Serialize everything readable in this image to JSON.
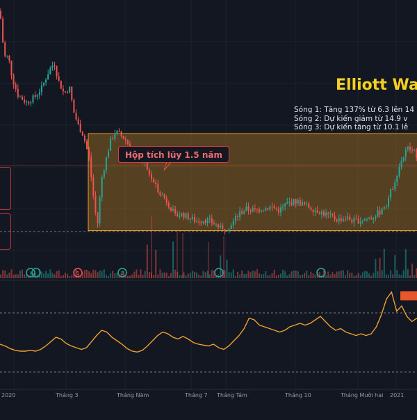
{
  "chart_data": [
    {
      "type": "candlestick",
      "title": "Elliott Wav",
      "annotations": [
        "Sóng 1: Tăng 137% từ 6.3 lên 14",
        "Sóng 2: Dự kiến giảm từ 14.9 v",
        "Sóng 3: Dự kiến tăng từ 10.1 lê"
      ],
      "callout": "Hộp tích lũy 1.5 năm",
      "accumulation_box": {
        "price_top": 15.3,
        "price_bottom": 10.0
      },
      "wave_markers": [
        "5",
        "3"
      ],
      "ylim": [
        7.4,
        22.6
      ],
      "colors": {
        "up": "#26a69a",
        "down": "#ef5350",
        "box": "#f0a020",
        "callout": "#e0393f"
      }
    },
    {
      "type": "line",
      "series": [
        {
          "values": [
            52,
            50,
            47,
            45,
            44,
            44,
            45,
            44,
            46,
            50,
            55,
            60,
            58,
            53,
            50,
            48,
            46,
            48,
            55,
            62,
            68,
            66,
            60,
            56,
            52,
            47,
            44,
            43,
            45,
            50,
            56,
            62,
            66,
            64,
            60,
            58,
            61,
            58,
            54,
            52,
            51,
            50,
            52,
            48,
            46,
            50,
            56,
            62,
            70,
            82,
            80,
            74,
            72,
            70,
            68,
            66,
            68,
            72,
            74,
            76,
            74,
            76,
            80,
            84,
            78,
            72,
            68,
            70,
            66,
            64,
            62,
            64,
            62,
            64,
            72,
            86,
            104,
            112,
            90,
            96,
            84,
            78,
            82
          ]
        }
      ],
      "colors": {
        "line": "#f0a030"
      }
    }
  ],
  "xaxis_ticks": [
    "2020",
    "Tháng 3",
    "Tháng Năm",
    "Tháng 7",
    "Tháng Tám",
    "Tháng 10",
    "Tháng Mười hai",
    "2021"
  ],
  "colors": {
    "background": "#131722",
    "title": "#f5d020"
  }
}
